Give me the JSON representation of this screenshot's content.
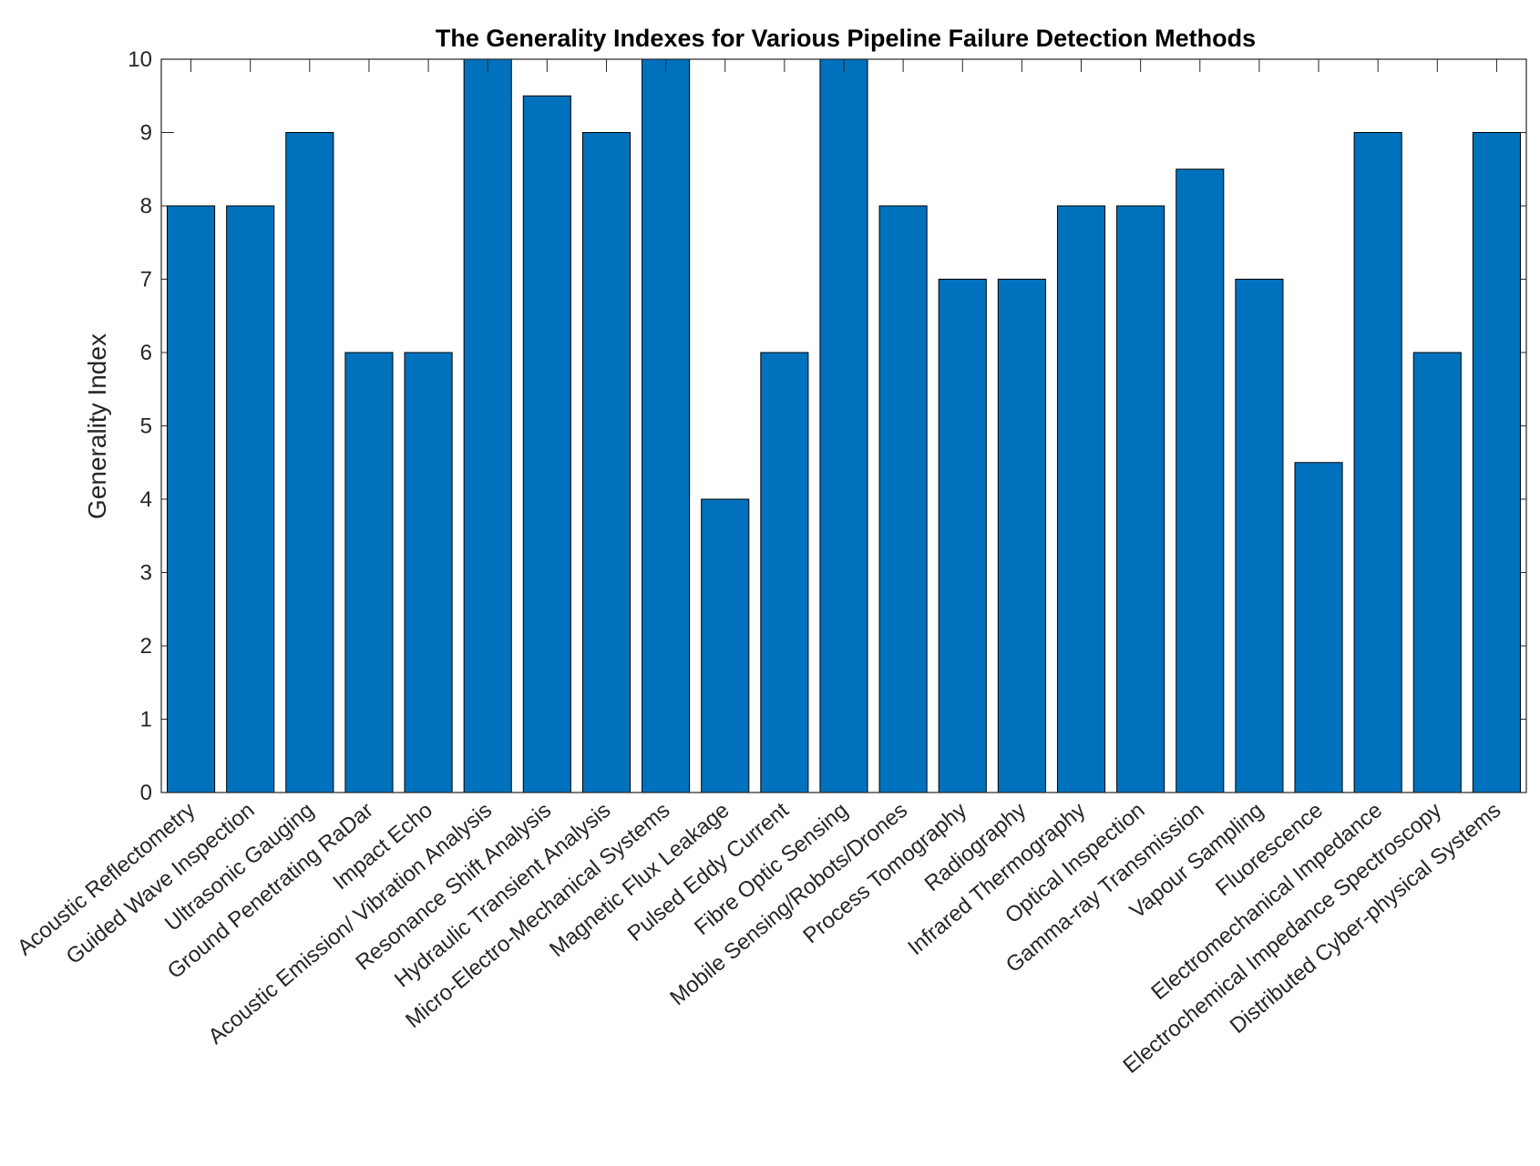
{
  "chart_data": {
    "type": "bar",
    "title": "The Generality Indexes for Various Pipeline Failure Detection Methods",
    "xlabel": "",
    "ylabel": "Generality Index",
    "ylim": [
      0,
      10
    ],
    "yticks": [
      0,
      1,
      2,
      3,
      4,
      5,
      6,
      7,
      8,
      9,
      10
    ],
    "grid": false,
    "bar_color": "#0072BD",
    "categories": [
      "Acoustic Reflectometry",
      "Guided Wave Inspection",
      "Ultrasonic Gauging",
      "Ground Penetrating RaDar",
      "Impact Echo",
      "Acoustic Emission/ Vibration Analysis",
      "Resonance Shift Analysis",
      "Hydraulic Transient Analysis",
      "Micro-Electro-Mechanical Systems",
      "Magnetic Flux Leakage",
      "Pulsed Eddy Current",
      "Fibre Optic Sensing",
      "Mobile Sensing/Robots/Drones",
      "Process Tomography",
      "Radiography",
      "Infrared Thermography",
      "Optical Inspection",
      "Gamma-ray Transmission",
      "Vapour Sampling",
      "Fluorescence",
      "Electromechanical Impedance",
      "Electrochemical Impedance Spectroscopy",
      "Distributed Cyber-physical Systems"
    ],
    "values": [
      8,
      8,
      9,
      6,
      6,
      10,
      9.5,
      9,
      10,
      4,
      6,
      10,
      8,
      7,
      7,
      8,
      8,
      8.5,
      7,
      4.5,
      9,
      6,
      9
    ]
  }
}
